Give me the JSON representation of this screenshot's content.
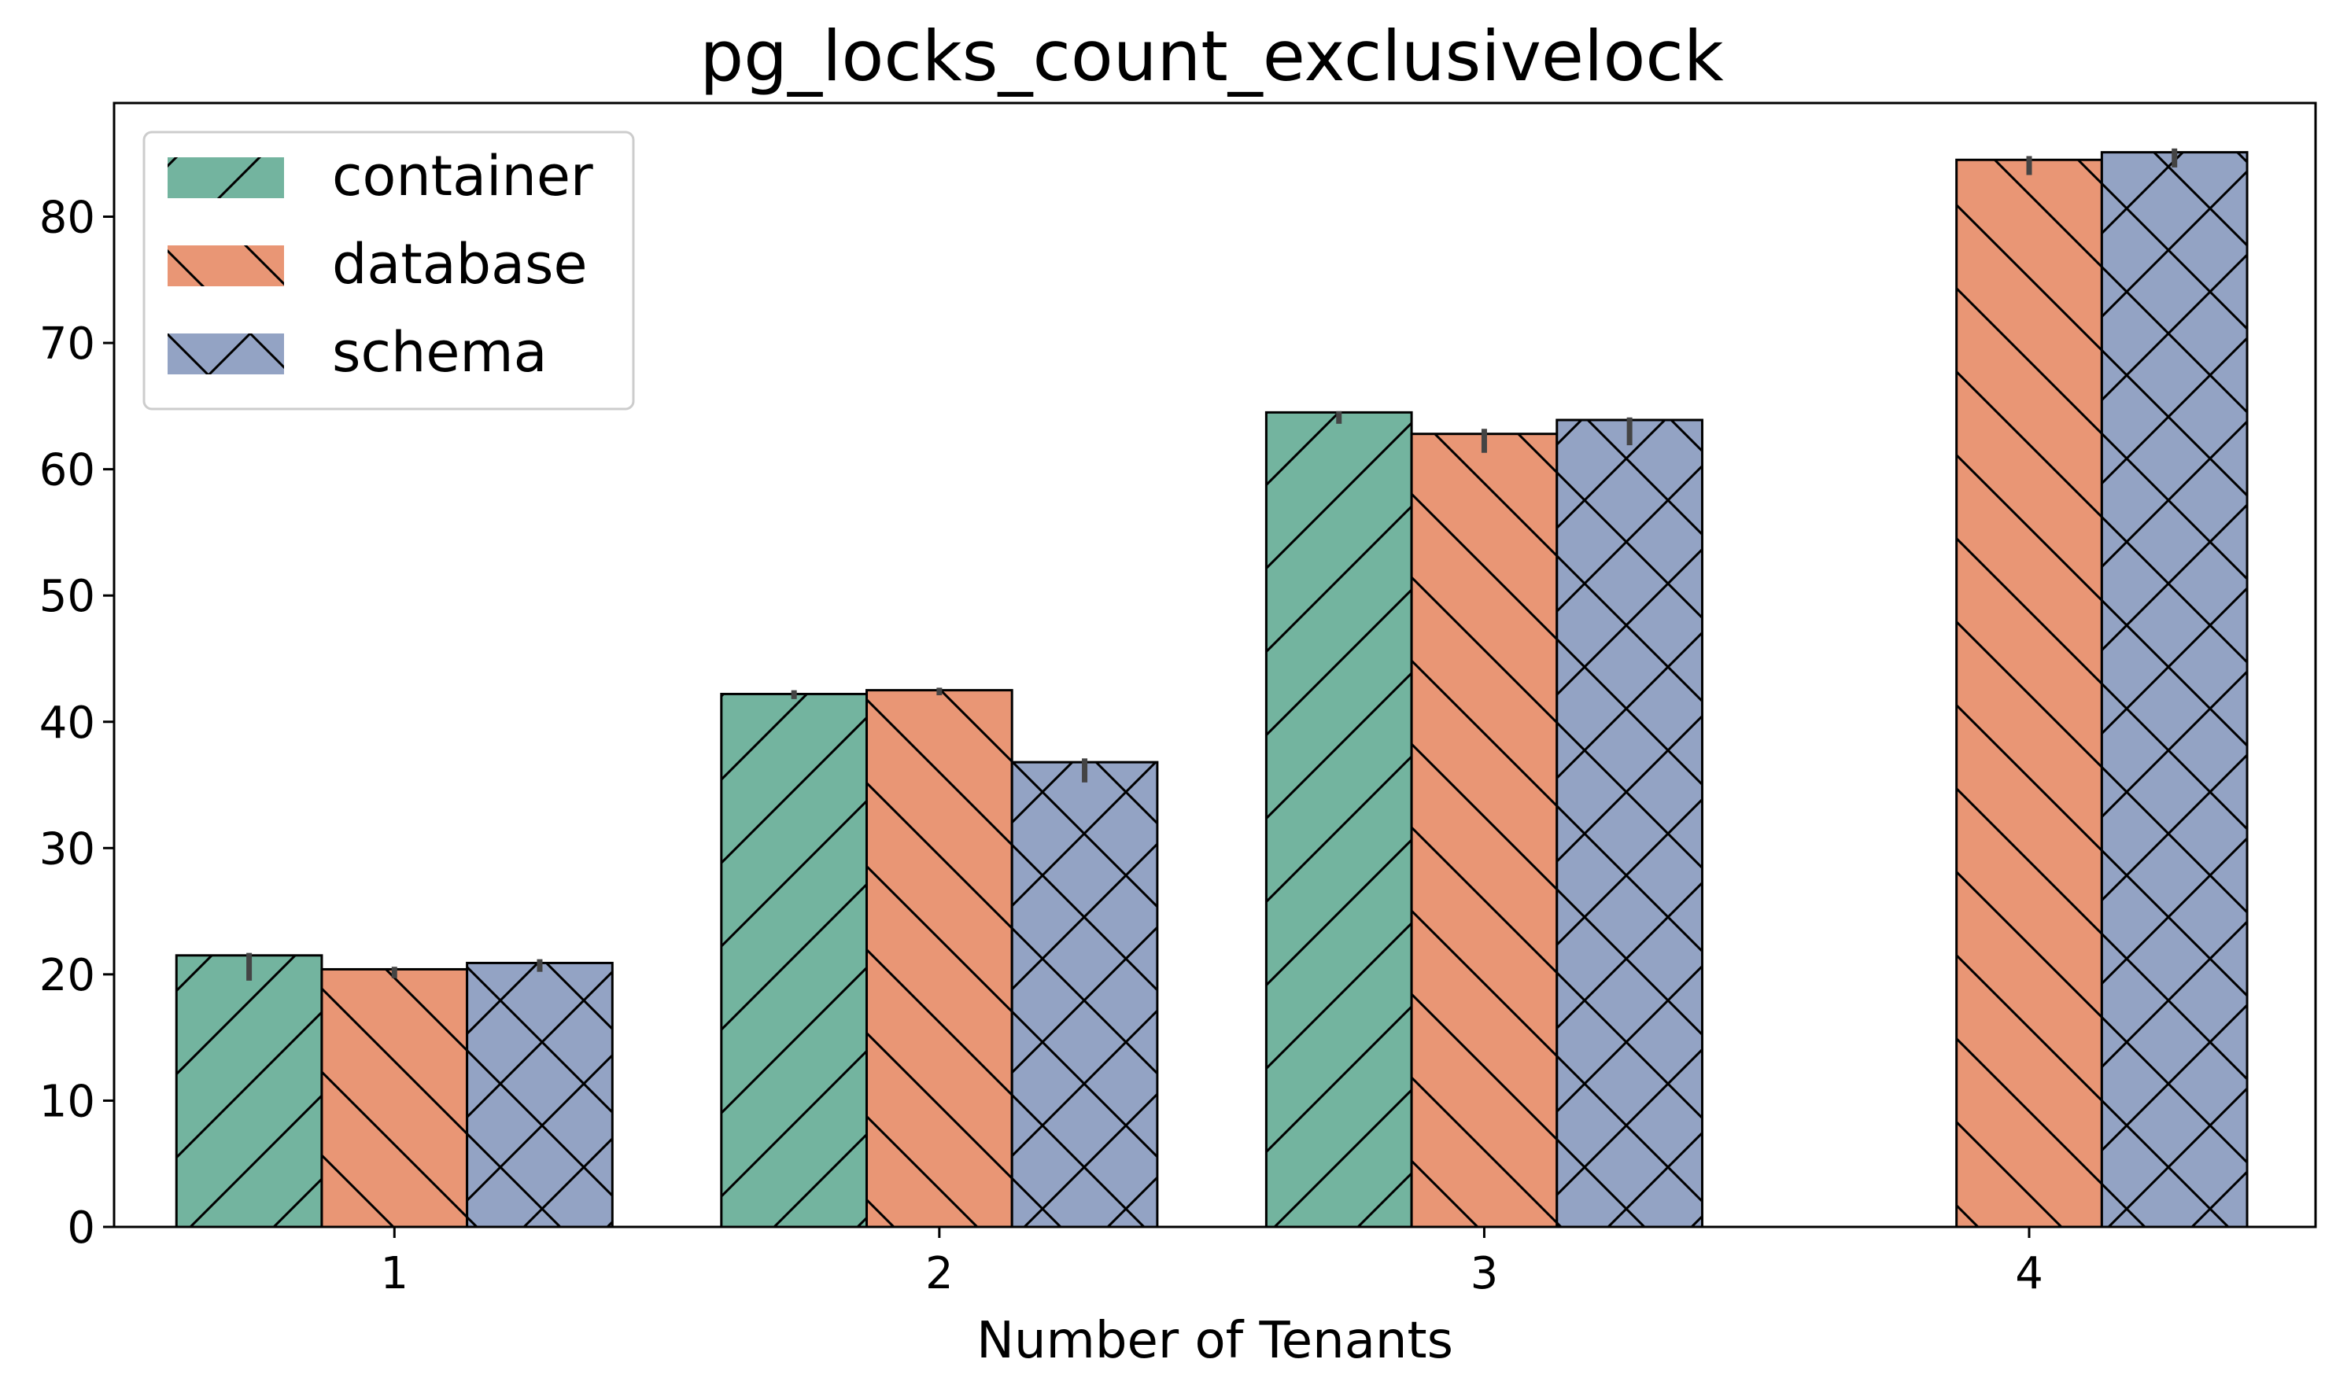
{
  "chart_data": {
    "type": "bar",
    "title": "pg_locks_count_exclusivelock",
    "xlabel": "Number of Tenants",
    "ylabel": "",
    "categories": [
      "1",
      "2",
      "3",
      "4"
    ],
    "ylim": [
      0,
      89
    ],
    "yticks": [
      0,
      10,
      20,
      30,
      40,
      50,
      60,
      70,
      80
    ],
    "grid": false,
    "legend_position": "top-left",
    "series": [
      {
        "name": "container",
        "color": "#73b49f",
        "hatch": "forward-diagonal",
        "values": [
          21.5,
          42.2,
          64.5,
          null
        ],
        "error": [
          [
            19.5,
            21.7
          ],
          [
            41.8,
            42.5
          ],
          [
            63.6,
            64.6
          ],
          null
        ]
      },
      {
        "name": "database",
        "color": "#e99675",
        "hatch": "back-diagonal",
        "values": [
          20.4,
          42.5,
          62.8,
          84.5
        ],
        "error": [
          [
            19.7,
            20.6
          ],
          [
            42.1,
            42.7
          ],
          [
            61.3,
            63.2
          ],
          [
            83.3,
            84.8
          ]
        ]
      },
      {
        "name": "schema",
        "color": "#93a3c4",
        "hatch": "cross",
        "values": [
          20.9,
          36.8,
          63.9,
          85.1
        ],
        "error": [
          [
            20.2,
            21.2
          ],
          [
            35.2,
            37.1
          ],
          [
            61.9,
            64.1
          ],
          [
            83.9,
            85.4
          ]
        ]
      }
    ]
  }
}
